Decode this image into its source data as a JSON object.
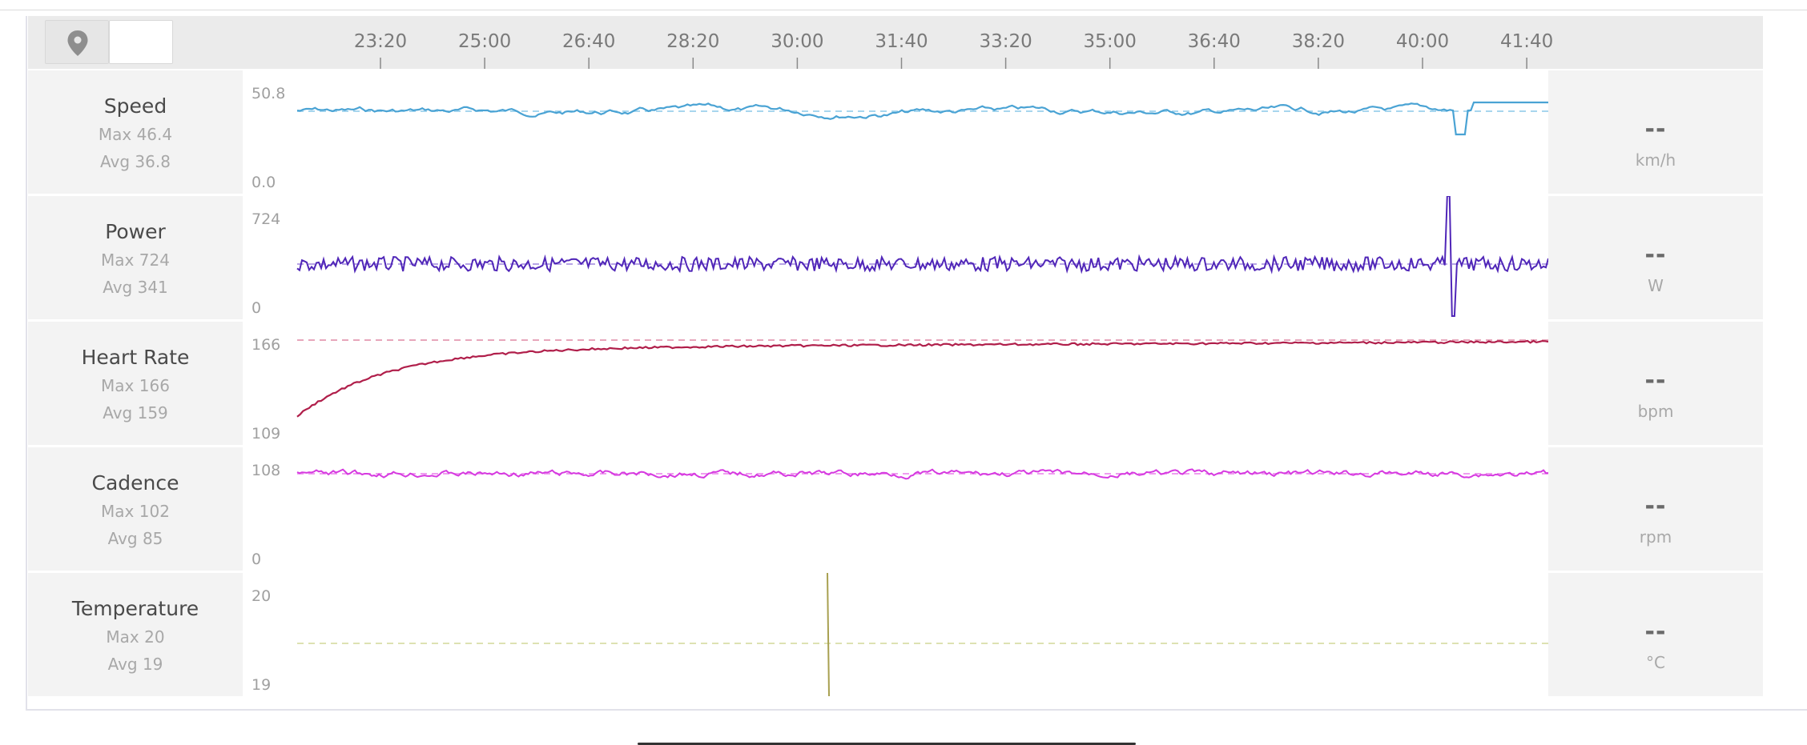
{
  "toolbar": {
    "map_icon": "map-pin-icon",
    "blank_button_label": ""
  },
  "time_axis": {
    "ticks": [
      "23:20",
      "25:00",
      "26:40",
      "28:20",
      "30:00",
      "31:40",
      "33:20",
      "35:00",
      "36:40",
      "38:20",
      "40:00",
      "41:40"
    ]
  },
  "metrics": [
    {
      "key": "speed",
      "name": "Speed",
      "max_text": "Max 46.4",
      "avg_text": "Avg 36.8",
      "y_max_label": "50.8",
      "y_min_label": "0.0",
      "current_value": "--",
      "unit": "km/h",
      "color": "#4aa3d4"
    },
    {
      "key": "power",
      "name": "Power",
      "max_text": "Max 724",
      "avg_text": "Avg 341",
      "y_max_label": "724",
      "y_min_label": "0",
      "current_value": "--",
      "unit": "W",
      "color": "#5026b8"
    },
    {
      "key": "heart_rate",
      "name": "Heart Rate",
      "max_text": "Max 166",
      "avg_text": "Avg 159",
      "y_max_label": "166",
      "y_min_label": "109",
      "current_value": "--",
      "unit": "bpm",
      "color": "#b01e4a"
    },
    {
      "key": "cadence",
      "name": "Cadence",
      "max_text": "Max 102",
      "avg_text": "Avg 85",
      "y_max_label": "108",
      "y_min_label": "0",
      "current_value": "--",
      "unit": "rpm",
      "color": "#d63ae0"
    },
    {
      "key": "temperature",
      "name": "Temperature",
      "max_text": "Max 20",
      "avg_text": "Avg 19",
      "y_max_label": "20",
      "y_min_label": "19",
      "current_value": "--",
      "unit": "°C",
      "color": "#a8a050"
    }
  ]
}
